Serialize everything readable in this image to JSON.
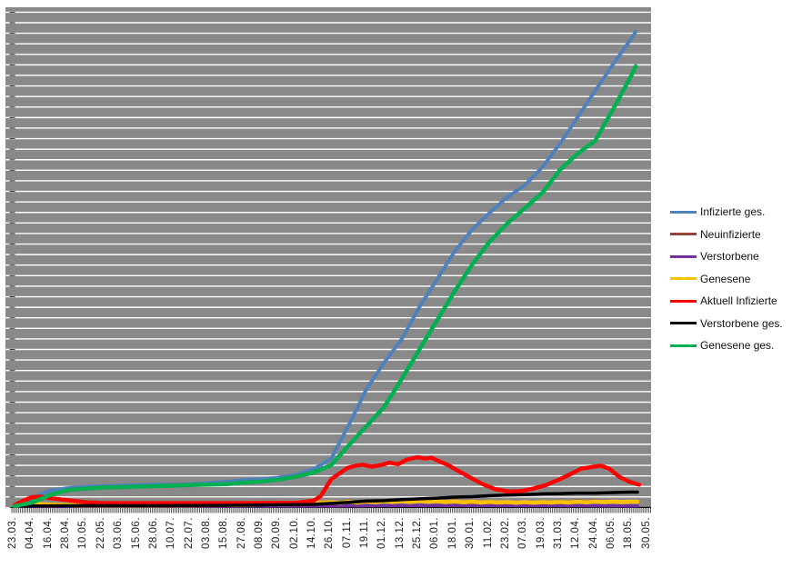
{
  "page": {
    "background": "#ffffff"
  },
  "chart_data": {
    "type": "line",
    "title": "",
    "legend_position": "right",
    "plot": {
      "background": "#898989",
      "gridline_color": "#ffffff",
      "axis_tick_color": "#333333",
      "gridlines": "horizontal-major",
      "y_axis_labels_visible": false
    },
    "y_axis": {
      "note": "no numeric labels visible; values below are relative units, 0 = axis baseline, 100 = plot top",
      "range": [
        0,
        100
      ]
    },
    "x_labels": [
      "23.03.",
      "04.04.",
      "16.04.",
      "28.04.",
      "10.05.",
      "22.05.",
      "03.06.",
      "15.06.",
      "28.06.",
      "10.07.",
      "22.07.",
      "03.08.",
      "15.08.",
      "27.08.",
      "08.09.",
      "20.09.",
      "02.10.",
      "14.10.",
      "26.10.",
      "07.11.",
      "19.11.",
      "01.12.",
      "13.12.",
      "25.12.",
      "06.01.",
      "18.01.",
      "30.01.",
      "11.02.",
      "23.02.",
      "07.03.",
      "19.03.",
      "31.03.",
      "12.04.",
      "24.04.",
      "06.05.",
      "18.05.",
      "30.05."
    ],
    "series": [
      {
        "name": "Infizierte ges.",
        "color": "#4f81bd",
        "width": 4,
        "points": [
          [
            0,
            0.4
          ],
          [
            1,
            1.8
          ],
          [
            2,
            3.3
          ],
          [
            3,
            3.8
          ],
          [
            4,
            4.1
          ],
          [
            5,
            4.2
          ],
          [
            6,
            4.3
          ],
          [
            7,
            4.4
          ],
          [
            8,
            4.5
          ],
          [
            9,
            4.5
          ],
          [
            10,
            4.6
          ],
          [
            11,
            4.8
          ],
          [
            12,
            5.1
          ],
          [
            13,
            5.4
          ],
          [
            14,
            5.6
          ],
          [
            15,
            5.9
          ],
          [
            16,
            6.5
          ],
          [
            17,
            7.6
          ],
          [
            18,
            9.7
          ],
          [
            19,
            16.5
          ],
          [
            20,
            23.6
          ],
          [
            21,
            28.9
          ],
          [
            22,
            33.6
          ],
          [
            23,
            40.0
          ],
          [
            24,
            45.5
          ],
          [
            25,
            51.1
          ],
          [
            26,
            55.5
          ],
          [
            27,
            58.9
          ],
          [
            28,
            62.0
          ],
          [
            29,
            64.4
          ],
          [
            30,
            68.0
          ],
          [
            31,
            72.7
          ],
          [
            32,
            78.0
          ],
          [
            33,
            83.3
          ],
          [
            34,
            88.5
          ],
          [
            35,
            93.5
          ],
          [
            35.3,
            95.1
          ]
        ]
      },
      {
        "name": "Neuinfizierte",
        "color": "#9a4136",
        "width": 3.5,
        "points": [
          [
            0,
            0.3
          ],
          [
            0.6,
            0.8
          ],
          [
            1,
            0.75
          ],
          [
            2,
            0.55
          ],
          [
            3,
            0.4
          ],
          [
            4,
            0.35
          ],
          [
            8,
            0.35
          ],
          [
            12,
            0.4
          ],
          [
            16,
            0.55
          ],
          [
            17,
            0.9
          ],
          [
            17.5,
            0.75
          ],
          [
            18,
            1.1
          ],
          [
            18.5,
            0.9
          ],
          [
            19,
            1.25
          ],
          [
            19.5,
            1.0
          ],
          [
            20,
            1.3
          ],
          [
            20.5,
            1.05
          ],
          [
            21,
            1.35
          ],
          [
            21.5,
            1.1
          ],
          [
            22,
            1.4
          ],
          [
            22.5,
            1.1
          ],
          [
            23,
            1.45
          ],
          [
            23.5,
            1.15
          ],
          [
            24,
            1.35
          ],
          [
            24.5,
            1.1
          ],
          [
            25,
            1.3
          ],
          [
            25.5,
            1.05
          ],
          [
            26,
            1.2
          ],
          [
            26.5,
            0.95
          ],
          [
            27,
            1.1
          ],
          [
            27.5,
            0.9
          ],
          [
            28,
            1.0
          ],
          [
            28.5,
            0.85
          ],
          [
            29,
            1.05
          ],
          [
            29.5,
            0.85
          ],
          [
            30,
            1.1
          ],
          [
            30.5,
            0.9
          ],
          [
            31,
            1.2
          ],
          [
            31.5,
            1.0
          ],
          [
            32,
            1.3
          ],
          [
            32.5,
            1.05
          ],
          [
            33,
            1.35
          ],
          [
            33.5,
            1.1
          ],
          [
            34,
            1.25
          ],
          [
            34.5,
            1.0
          ],
          [
            35,
            1.15
          ],
          [
            35.4,
            1.1
          ]
        ]
      },
      {
        "name": "Verstorbene",
        "color": "#7030a0",
        "width": 3.5,
        "points": [
          [
            0,
            0.15
          ],
          [
            8,
            0.18
          ],
          [
            16,
            0.2
          ],
          [
            20,
            0.28
          ],
          [
            22,
            0.32
          ],
          [
            24,
            0.35
          ],
          [
            26,
            0.35
          ],
          [
            28,
            0.3
          ],
          [
            30,
            0.3
          ],
          [
            32,
            0.28
          ],
          [
            34,
            0.25
          ],
          [
            35.4,
            0.25
          ]
        ]
      },
      {
        "name": "Genesene",
        "color": "#ffc000",
        "width": 4.5,
        "points": [
          [
            0,
            0.2
          ],
          [
            0.8,
            0.6
          ],
          [
            1.2,
            0.65
          ],
          [
            2,
            0.5
          ],
          [
            3,
            0.4
          ],
          [
            4,
            0.35
          ],
          [
            8,
            0.35
          ],
          [
            12,
            0.4
          ],
          [
            16,
            0.6
          ],
          [
            17,
            0.8
          ],
          [
            18,
            1.0
          ],
          [
            18.5,
            0.85
          ],
          [
            19,
            1.1
          ],
          [
            19.5,
            0.9
          ],
          [
            20,
            1.15
          ],
          [
            20.5,
            0.95
          ],
          [
            21,
            1.2
          ],
          [
            21.5,
            1.0
          ],
          [
            22,
            1.2
          ],
          [
            22.5,
            1.0
          ],
          [
            23,
            1.25
          ],
          [
            23.5,
            1.05
          ],
          [
            24,
            1.2
          ],
          [
            24.5,
            1.0
          ],
          [
            25,
            1.15
          ],
          [
            25.5,
            0.95
          ],
          [
            26,
            1.1
          ],
          [
            26.5,
            0.9
          ],
          [
            27,
            1.05
          ],
          [
            27.5,
            0.9
          ],
          [
            28,
            1.0
          ],
          [
            28.5,
            0.85
          ],
          [
            29,
            1.0
          ],
          [
            29.5,
            0.85
          ],
          [
            30,
            1.0
          ],
          [
            30.5,
            0.9
          ],
          [
            31,
            1.05
          ],
          [
            31.5,
            0.9
          ],
          [
            32,
            1.1
          ],
          [
            32.5,
            0.95
          ],
          [
            33,
            1.15
          ],
          [
            33.5,
            1.0
          ],
          [
            34,
            1.15
          ],
          [
            34.5,
            1.0
          ],
          [
            35,
            1.1
          ],
          [
            35.4,
            1.1
          ]
        ]
      },
      {
        "name": "Aktuell Infizierte",
        "color": "#ff0000",
        "width": 4.5,
        "points": [
          [
            0,
            0.4
          ],
          [
            0.5,
            1.3
          ],
          [
            1,
            2.0
          ],
          [
            1.5,
            2.1
          ],
          [
            2,
            1.8
          ],
          [
            3,
            1.4
          ],
          [
            4,
            1.0
          ],
          [
            5,
            0.8
          ],
          [
            8,
            0.8
          ],
          [
            12,
            0.8
          ],
          [
            16,
            0.85
          ],
          [
            17,
            1.3
          ],
          [
            17.4,
            2.2
          ],
          [
            18,
            5.6
          ],
          [
            18.9,
            7.8
          ],
          [
            19.4,
            8.3
          ],
          [
            19.8,
            8.5
          ],
          [
            20.3,
            8.1
          ],
          [
            20.8,
            8.4
          ],
          [
            21.3,
            8.9
          ],
          [
            21.8,
            8.6
          ],
          [
            22.3,
            9.5
          ],
          [
            22.9,
            10.0
          ],
          [
            23.3,
            9.7
          ],
          [
            23.7,
            9.9
          ],
          [
            24.1,
            9.2
          ],
          [
            24.6,
            8.5
          ],
          [
            25.2,
            7.3
          ],
          [
            25.9,
            5.9
          ],
          [
            26.6,
            4.6
          ],
          [
            27.3,
            3.6
          ],
          [
            28.1,
            3.1
          ],
          [
            28.8,
            3.2
          ],
          [
            29.5,
            3.7
          ],
          [
            30.2,
            4.4
          ],
          [
            31,
            5.6
          ],
          [
            31.6,
            6.6
          ],
          [
            32.2,
            7.7
          ],
          [
            32.8,
            8.0
          ],
          [
            33.3,
            8.3
          ],
          [
            33.8,
            7.7
          ],
          [
            34.4,
            6.0
          ],
          [
            35,
            5.0
          ],
          [
            35.5,
            4.5
          ]
        ]
      },
      {
        "name": "Verstorbene ges.",
        "color": "#000000",
        "width": 3.5,
        "points": [
          [
            0,
            0.2
          ],
          [
            2,
            0.25
          ],
          [
            4,
            0.3
          ],
          [
            8,
            0.3
          ],
          [
            12,
            0.35
          ],
          [
            14,
            0.4
          ],
          [
            16,
            0.5
          ],
          [
            17,
            0.55
          ],
          [
            18,
            0.75
          ],
          [
            19,
            0.95
          ],
          [
            20,
            1.2
          ],
          [
            21,
            1.3
          ],
          [
            22,
            1.5
          ],
          [
            23,
            1.65
          ],
          [
            24,
            1.8
          ],
          [
            25,
            2.0
          ],
          [
            26,
            2.1
          ],
          [
            27,
            2.3
          ],
          [
            28,
            2.4
          ],
          [
            29,
            2.5
          ],
          [
            30,
            2.65
          ],
          [
            31,
            2.7
          ],
          [
            32,
            2.8
          ],
          [
            33,
            2.8
          ],
          [
            34,
            2.9
          ],
          [
            35,
            3.0
          ],
          [
            35.4,
            3.0
          ]
        ]
      },
      {
        "name": "Genesene ges.",
        "color": "#00b050",
        "width": 4.5,
        "points": [
          [
            0,
            0.2
          ],
          [
            1,
            0.9
          ],
          [
            2,
            2.4
          ],
          [
            3,
            3.4
          ],
          [
            4,
            3.7
          ],
          [
            5,
            3.9
          ],
          [
            6,
            4.0
          ],
          [
            7,
            4.1
          ],
          [
            8,
            4.2
          ],
          [
            9,
            4.3
          ],
          [
            10,
            4.4
          ],
          [
            11,
            4.5
          ],
          [
            12,
            4.6
          ],
          [
            13,
            4.9
          ],
          [
            14,
            5.1
          ],
          [
            15,
            5.5
          ],
          [
            16,
            6.1
          ],
          [
            17,
            6.9
          ],
          [
            18,
            8.4
          ],
          [
            19,
            12.4
          ],
          [
            20,
            16.2
          ],
          [
            21,
            20.0
          ],
          [
            22,
            25.6
          ],
          [
            23,
            31.5
          ],
          [
            24,
            37.3
          ],
          [
            25,
            43.1
          ],
          [
            26,
            48.5
          ],
          [
            27,
            53.1
          ],
          [
            28,
            56.7
          ],
          [
            29,
            59.8
          ],
          [
            30,
            62.9
          ],
          [
            31,
            67.5
          ],
          [
            32,
            70.7
          ],
          [
            33,
            73.3
          ],
          [
            34,
            79.5
          ],
          [
            35,
            86.0
          ],
          [
            35.3,
            88.2
          ]
        ]
      }
    ]
  }
}
